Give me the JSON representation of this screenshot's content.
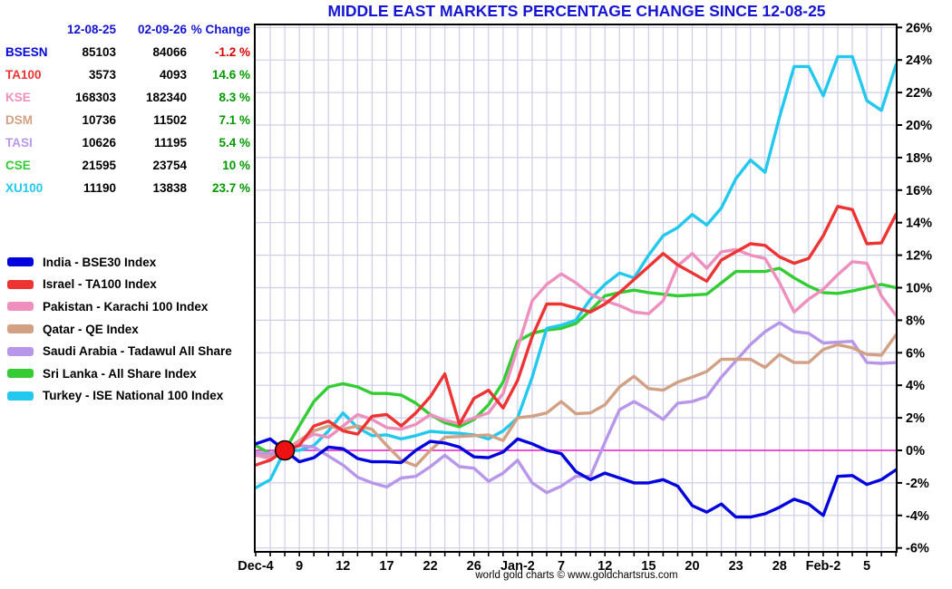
{
  "title": "MIDDLE EAST MARKETS PERCENTAGE CHANGE SINCE 12-08-25",
  "title_color": "#1414d2",
  "footer": "world gold charts © www.goldchartsrus.com",
  "table": {
    "header_color": "#1414d2",
    "headers": [
      "12-08-25",
      "02-09-26",
      "% Change"
    ],
    "rows": [
      {
        "label": "BSESN",
        "color": "#0202dd",
        "v1": "85103",
        "v2": "84066",
        "change": "-1.2 %",
        "change_color": "#dd0000"
      },
      {
        "label": "TA100",
        "color": "#ee3333",
        "v1": "3573",
        "v2": "4093",
        "change": "14.6 %",
        "change_color": "#009900"
      },
      {
        "label": "KSE",
        "color": "#ee8fbe",
        "v1": "168303",
        "v2": "182340",
        "change": "8.3 %",
        "change_color": "#009900"
      },
      {
        "label": "DSM",
        "color": "#d2a183",
        "v1": "10736",
        "v2": "11502",
        "change": "7.1 %",
        "change_color": "#009900"
      },
      {
        "label": "TASI",
        "color": "#b897ea",
        "v1": "10626",
        "v2": "11195",
        "change": "5.4 %",
        "change_color": "#009900"
      },
      {
        "label": "CSE",
        "color": "#33cc33",
        "v1": "21595",
        "v2": "23754",
        "change": "10 %",
        "change_color": "#009900"
      },
      {
        "label": "XU100",
        "color": "#22c8ee",
        "v1": "11190",
        "v2": "13838",
        "change": "23.7 %",
        "change_color": "#009900"
      }
    ]
  },
  "legend": [
    {
      "label": "India - BSE30 Index",
      "color": "#0202dd"
    },
    {
      "label": "Israel - TA100 Index",
      "color": "#ee3333"
    },
    {
      "label": "Pakistan - Karachi 100 Index",
      "color": "#ee8fbe"
    },
    {
      "label": "Qatar - QE Index",
      "color": "#d2a183"
    },
    {
      "label": "Saudi Arabia - Tadawul All Share",
      "color": "#b897ea"
    },
    {
      "label": "Sri Lanka - All Share Index",
      "color": "#33cc33"
    },
    {
      "label": "Turkey - ISE National 100 Index",
      "color": "#22c8ee"
    }
  ],
  "chart_data": {
    "type": "line",
    "title": "MIDDLE EAST MARKETS PERCENTAGE CHANGE SINCE 12-08-25",
    "xlabel": "",
    "ylabel": "percent change",
    "ylim": [
      -6.2,
      26.3
    ],
    "grid": true,
    "legend_position": "left",
    "grid_color": "#cdcdea",
    "zero_line_color": "#e820c8",
    "marker": {
      "index": 2,
      "value": 0,
      "color": "#ee1111",
      "note": "reference start point 12-08-25"
    },
    "y_ticks": [
      {
        "label": "26%",
        "value": 26
      },
      {
        "label": "24%",
        "value": 24
      },
      {
        "label": "22%",
        "value": 22
      },
      {
        "label": "20%",
        "value": 20
      },
      {
        "label": "18%",
        "value": 18
      },
      {
        "label": "16%",
        "value": 16
      },
      {
        "label": "14%",
        "value": 14
      },
      {
        "label": "12%",
        "value": 12
      },
      {
        "label": "10%",
        "value": 10
      },
      {
        "label": "8%",
        "value": 8
      },
      {
        "label": "6%",
        "value": 6
      },
      {
        "label": "4%",
        "value": 4
      },
      {
        "label": "2%",
        "value": 2
      },
      {
        "label": "0%",
        "value": 0
      },
      {
        "label": "-2%",
        "value": -2
      },
      {
        "label": "-4%",
        "value": -4
      },
      {
        "label": "-6%",
        "value": -6
      }
    ],
    "x_ticks": [
      {
        "label": "Dec-4",
        "index": 0
      },
      {
        "label": "9",
        "index": 3
      },
      {
        "label": "12",
        "index": 6
      },
      {
        "label": "17",
        "index": 9
      },
      {
        "label": "22",
        "index": 12
      },
      {
        "label": "26",
        "index": 15
      },
      {
        "label": "Jan-2",
        "index": 18
      },
      {
        "label": "7",
        "index": 21
      },
      {
        "label": "12",
        "index": 24
      },
      {
        "label": "15",
        "index": 27
      },
      {
        "label": "20",
        "index": 30
      },
      {
        "label": "23",
        "index": 33
      },
      {
        "label": "28",
        "index": 36
      },
      {
        "label": "Feb-2",
        "index": 39
      },
      {
        "label": "5",
        "index": 42
      }
    ],
    "series": [
      {
        "id": "sri-lanka",
        "name": "Sri Lanka - All Share Index",
        "color": "#33cc33",
        "values": [
          0.3,
          -0.2,
          0.0,
          1.5,
          3.0,
          3.9,
          4.1,
          3.9,
          3.5,
          3.5,
          3.4,
          2.9,
          2.2,
          1.7,
          1.45,
          1.9,
          2.8,
          4.2,
          6.7,
          7.2,
          7.4,
          7.5,
          7.8,
          8.6,
          9.5,
          9.7,
          9.85,
          9.7,
          9.6,
          9.5,
          9.55,
          9.6,
          10.3,
          11.0,
          11.0,
          11.0,
          11.2,
          10.6,
          10.1,
          9.7,
          9.65,
          9.8,
          10.0,
          10.2,
          10.0
        ]
      },
      {
        "id": "turkey",
        "name": "Turkey - ISE National 100 Index",
        "color": "#22c8ee",
        "values": [
          -2.3,
          -1.8,
          0.0,
          0.0,
          0.3,
          1.2,
          2.3,
          1.4,
          0.9,
          0.95,
          0.7,
          0.9,
          1.17,
          1.1,
          1.05,
          0.95,
          0.7,
          1.2,
          2.0,
          4.5,
          7.5,
          7.7,
          8.0,
          9.3,
          10.2,
          10.9,
          10.6,
          12.0,
          13.2,
          13.7,
          14.5,
          13.85,
          14.9,
          16.7,
          17.85,
          17.1,
          20.5,
          23.6,
          23.6,
          21.8,
          24.2,
          24.2,
          21.5,
          20.9,
          23.7
        ]
      },
      {
        "id": "saudi-arabia",
        "name": "Saudi Arabia - Tadawul All Share",
        "color": "#b897ea",
        "values": [
          -0.15,
          -0.2,
          0.0,
          0.3,
          0.2,
          -0.35,
          -0.9,
          -1.65,
          -2.0,
          -2.25,
          -1.7,
          -1.6,
          -1.0,
          -0.3,
          -1.0,
          -1.1,
          -1.9,
          -1.4,
          -0.6,
          -2.0,
          -2.6,
          -2.2,
          -1.6,
          -1.6,
          0.5,
          2.5,
          3.0,
          2.5,
          1.9,
          2.9,
          3.0,
          3.3,
          4.5,
          5.5,
          6.5,
          7.3,
          7.85,
          7.3,
          7.2,
          6.6,
          6.65,
          6.7,
          5.4,
          5.35,
          5.4
        ]
      },
      {
        "id": "qatar",
        "name": "Qatar - QE Index",
        "color": "#d2a183",
        "values": [
          -0.3,
          -0.4,
          0.0,
          0.6,
          1.2,
          1.5,
          1.3,
          1.5,
          1.3,
          0.3,
          -0.6,
          -0.95,
          0.0,
          0.8,
          0.85,
          0.9,
          0.95,
          0.6,
          2.0,
          2.1,
          2.3,
          3.0,
          2.25,
          2.3,
          2.8,
          3.9,
          4.55,
          3.8,
          3.7,
          4.2,
          4.5,
          4.85,
          5.6,
          5.6,
          5.6,
          5.1,
          5.9,
          5.4,
          5.4,
          6.2,
          6.5,
          6.3,
          5.9,
          5.85,
          7.1
        ]
      },
      {
        "id": "pakistan",
        "name": "Pakistan - Karachi 100 Index",
        "color": "#ee8fbe",
        "values": [
          -0.3,
          -0.5,
          0.0,
          0.5,
          1.0,
          0.8,
          1.5,
          2.2,
          1.9,
          1.4,
          1.3,
          1.6,
          2.2,
          1.85,
          1.65,
          2.0,
          2.3,
          3.5,
          6.3,
          9.2,
          10.2,
          10.85,
          10.3,
          9.6,
          9.2,
          8.9,
          8.5,
          8.4,
          9.2,
          11.35,
          12.1,
          11.2,
          12.2,
          12.35,
          12.0,
          11.8,
          10.3,
          8.5,
          9.3,
          9.9,
          10.8,
          11.6,
          11.5,
          9.5,
          8.3
        ]
      },
      {
        "id": "israel",
        "name": "Israel - TA100 Index",
        "color": "#ee3333",
        "values": [
          -0.9,
          -0.6,
          0.0,
          0.3,
          1.5,
          1.8,
          1.2,
          1.0,
          2.1,
          2.2,
          1.5,
          2.3,
          3.3,
          4.7,
          1.6,
          3.2,
          3.7,
          2.6,
          4.3,
          7.0,
          9.0,
          9.0,
          8.75,
          8.5,
          9.0,
          9.7,
          10.5,
          11.3,
          12.1,
          11.4,
          10.9,
          10.4,
          11.7,
          12.2,
          12.7,
          12.6,
          11.9,
          11.5,
          11.8,
          13.2,
          15.0,
          14.8,
          12.7,
          12.75,
          14.5
        ]
      },
      {
        "id": "india",
        "name": "India - BSE30 Index",
        "color": "#0202dd",
        "values": [
          0.4,
          0.7,
          0.0,
          -0.7,
          -0.45,
          0.2,
          0.1,
          -0.5,
          -0.7,
          -0.7,
          -0.75,
          0.0,
          0.55,
          0.45,
          0.2,
          -0.4,
          -0.45,
          -0.1,
          0.7,
          0.4,
          0.0,
          -0.2,
          -1.3,
          -1.8,
          -1.4,
          -1.7,
          -2.0,
          -2.0,
          -1.8,
          -2.2,
          -3.4,
          -3.8,
          -3.3,
          -4.1,
          -4.1,
          -3.9,
          -3.5,
          -3.0,
          -3.3,
          -4.0,
          -1.6,
          -1.55,
          -2.1,
          -1.8,
          -1.2
        ]
      }
    ]
  }
}
